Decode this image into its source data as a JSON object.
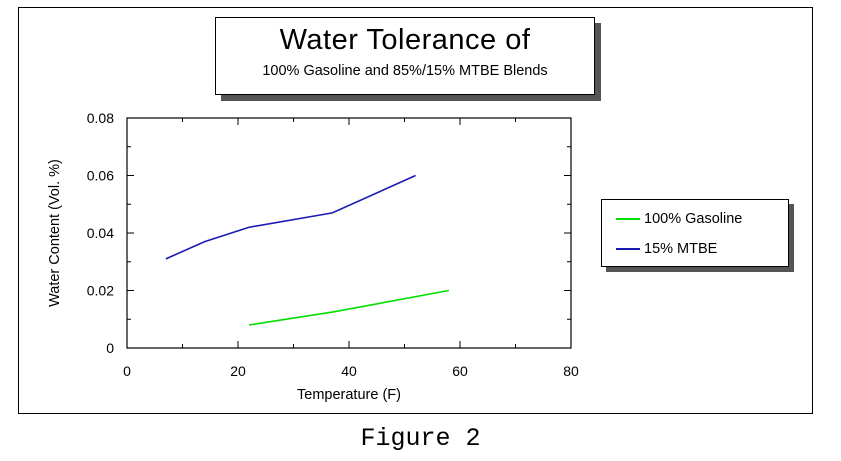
{
  "chart_data": {
    "type": "line",
    "title": "Water Tolerance of",
    "subtitle": "100% Gasoline and 85%/15% MTBE Blends",
    "xlabel": "Temperature (F)",
    "ylabel": "Water Content (Vol. %)",
    "xlim": [
      0,
      80
    ],
    "ylim": [
      0,
      0.08
    ],
    "x_ticks": [
      0,
      20,
      40,
      60,
      80
    ],
    "x_tick_labels": [
      "0",
      "20",
      "40",
      "60",
      "80"
    ],
    "y_ticks": [
      0,
      0.02,
      0.04,
      0.06,
      0.08
    ],
    "y_tick_labels": [
      "0",
      "0.02",
      "0.04",
      "0.06",
      "0.08"
    ],
    "grid": false,
    "legend_position": "right",
    "series": [
      {
        "name": "100% Gasoline",
        "color": "#00e000",
        "x": [
          22,
          37,
          58
        ],
        "y": [
          0.008,
          0.0125,
          0.02
        ]
      },
      {
        "name": "15% MTBE",
        "color": "#1a1ab4",
        "x": [
          7,
          14,
          22,
          37,
          52
        ],
        "y": [
          0.031,
          0.037,
          0.042,
          0.047,
          0.06
        ]
      }
    ]
  },
  "caption": "Figure 2"
}
